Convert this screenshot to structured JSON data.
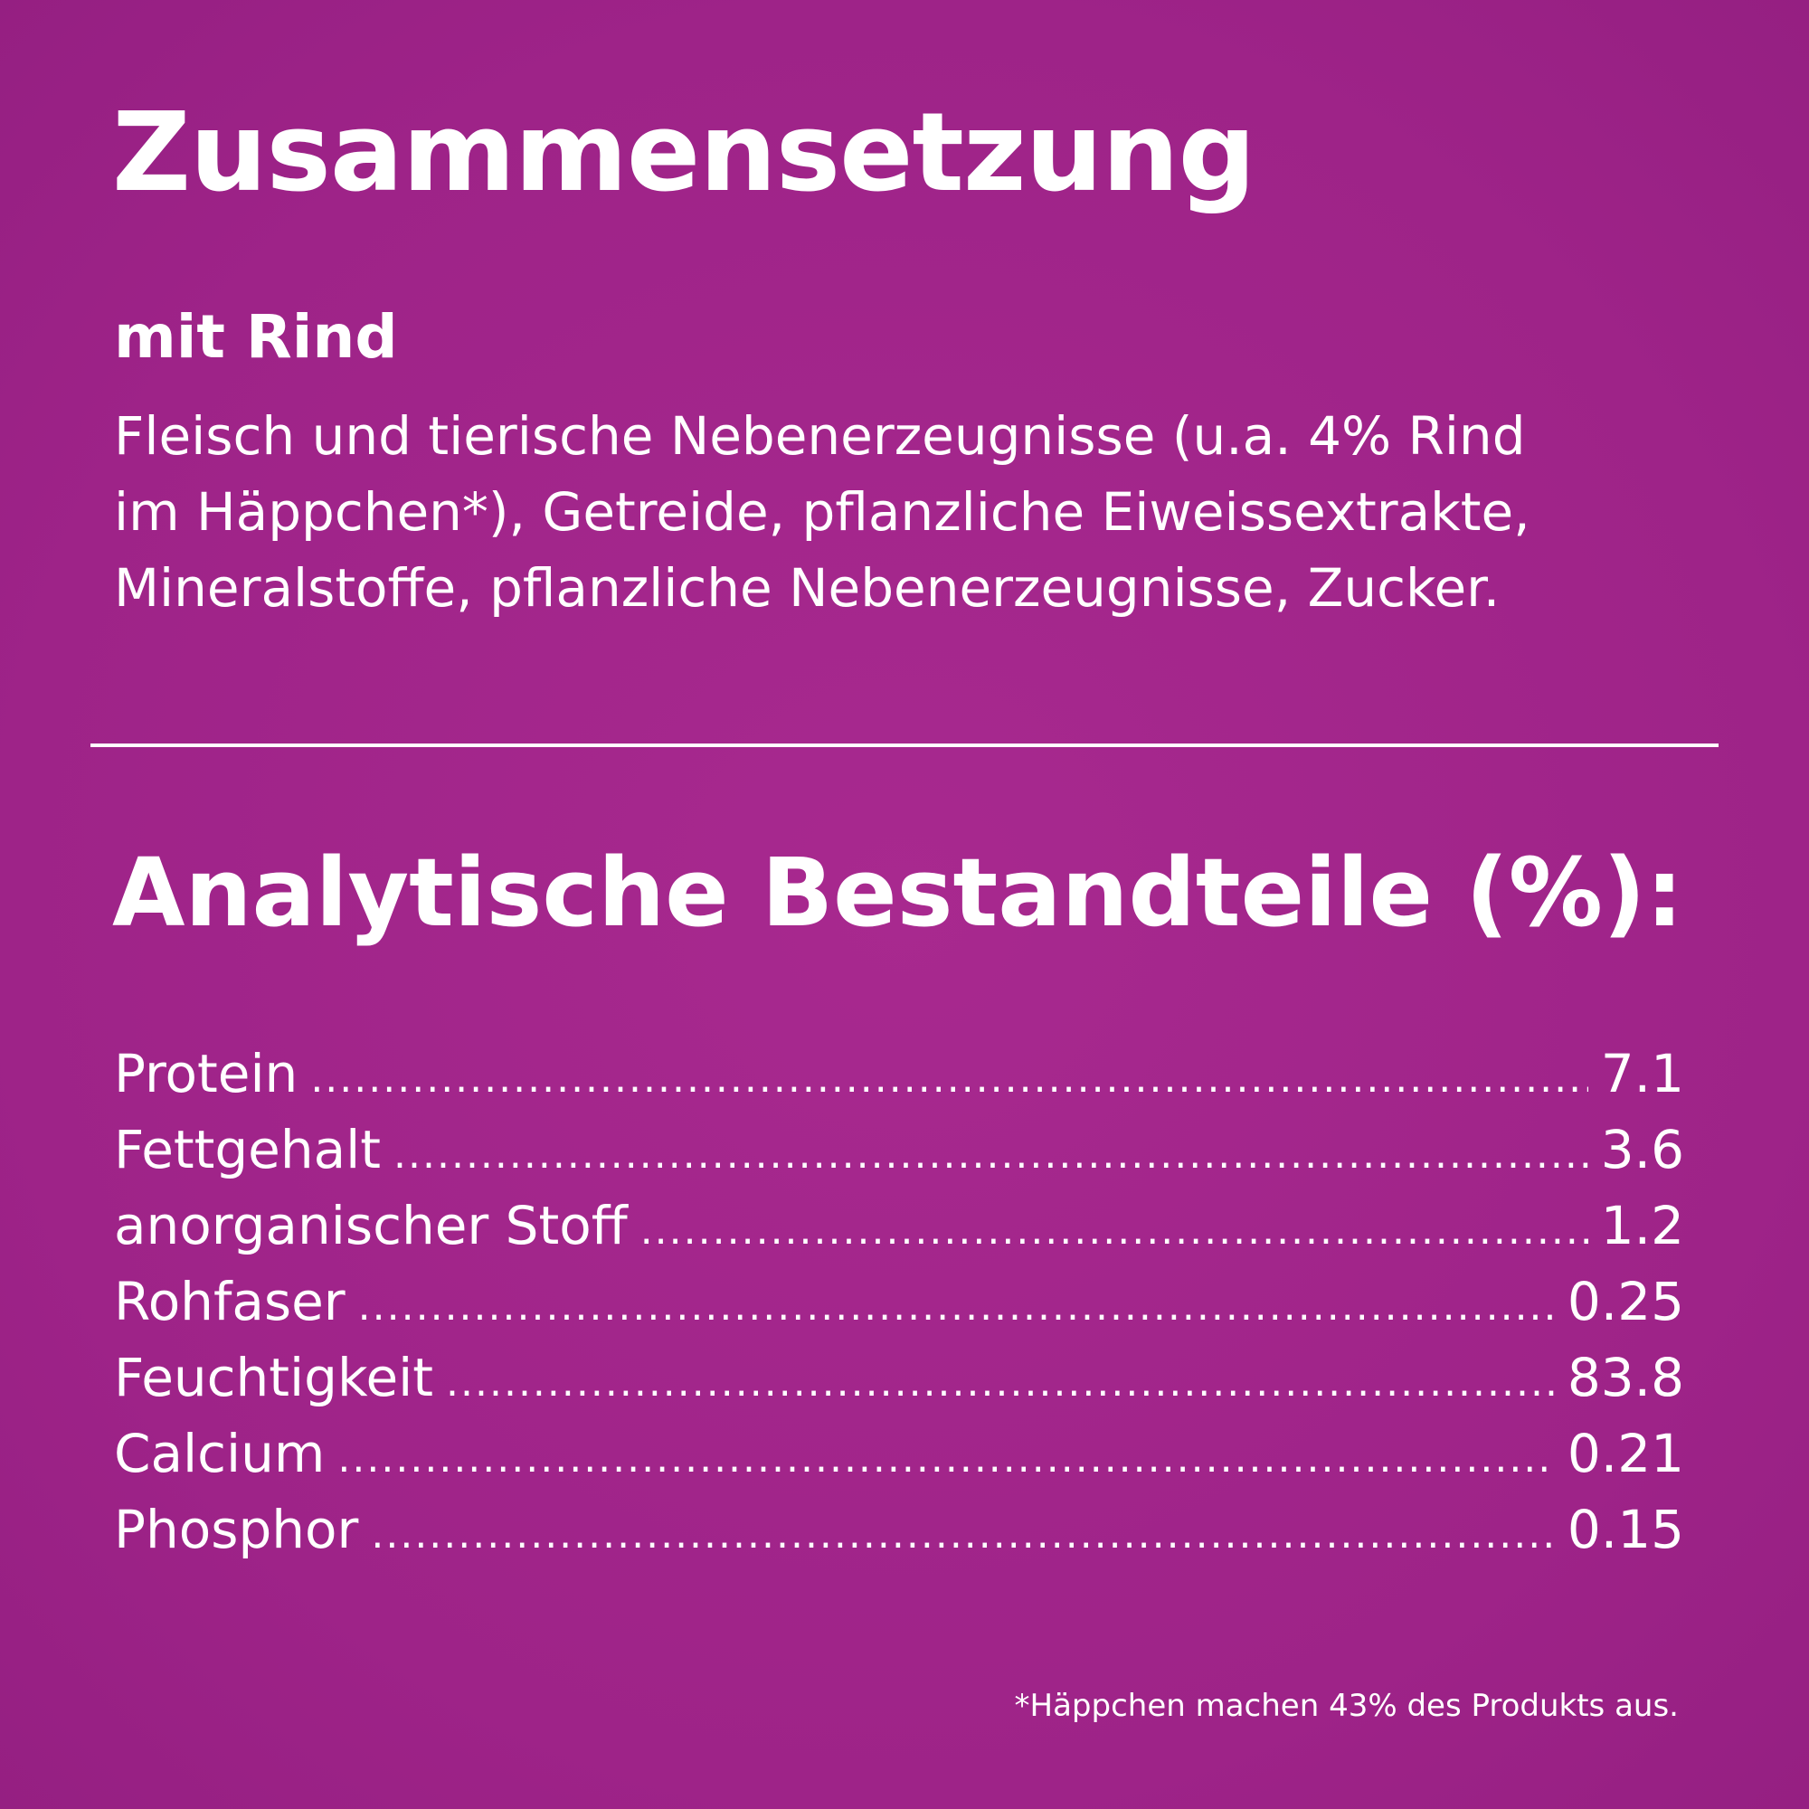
{
  "composition": {
    "title": "Zusammensetzung",
    "variant": "mit Rind",
    "lines": [
      "Fleisch und tierische Nebenerzeugnisse (u.a. 4% Rind",
      "im Häppchen*), Getreide, pflanzliche Eiweissextrakte,",
      "Mineralstoffe, pflanzliche Nebenerzeugnisse, Zucker."
    ]
  },
  "analysis": {
    "title": "Analytische Bestandteile (%):",
    "items": [
      {
        "name": "Protein",
        "value": "7.1"
      },
      {
        "name": "Fettgehalt",
        "value": "3.6"
      },
      {
        "name": "anorganischer Stoff",
        "value": "1.2"
      },
      {
        "name": "Rohfaser",
        "value": "0.25"
      },
      {
        "name": "Feuchtigkeit",
        "value": "83.8"
      },
      {
        "name": "Calcium",
        "value": "0.21"
      },
      {
        "name": "Phosphor",
        "value": "0.15"
      }
    ]
  },
  "footnote": "*Häppchen machen 43% des Produkts aus.",
  "colors": {
    "background": "#a3268c",
    "text": "#ffffff"
  }
}
